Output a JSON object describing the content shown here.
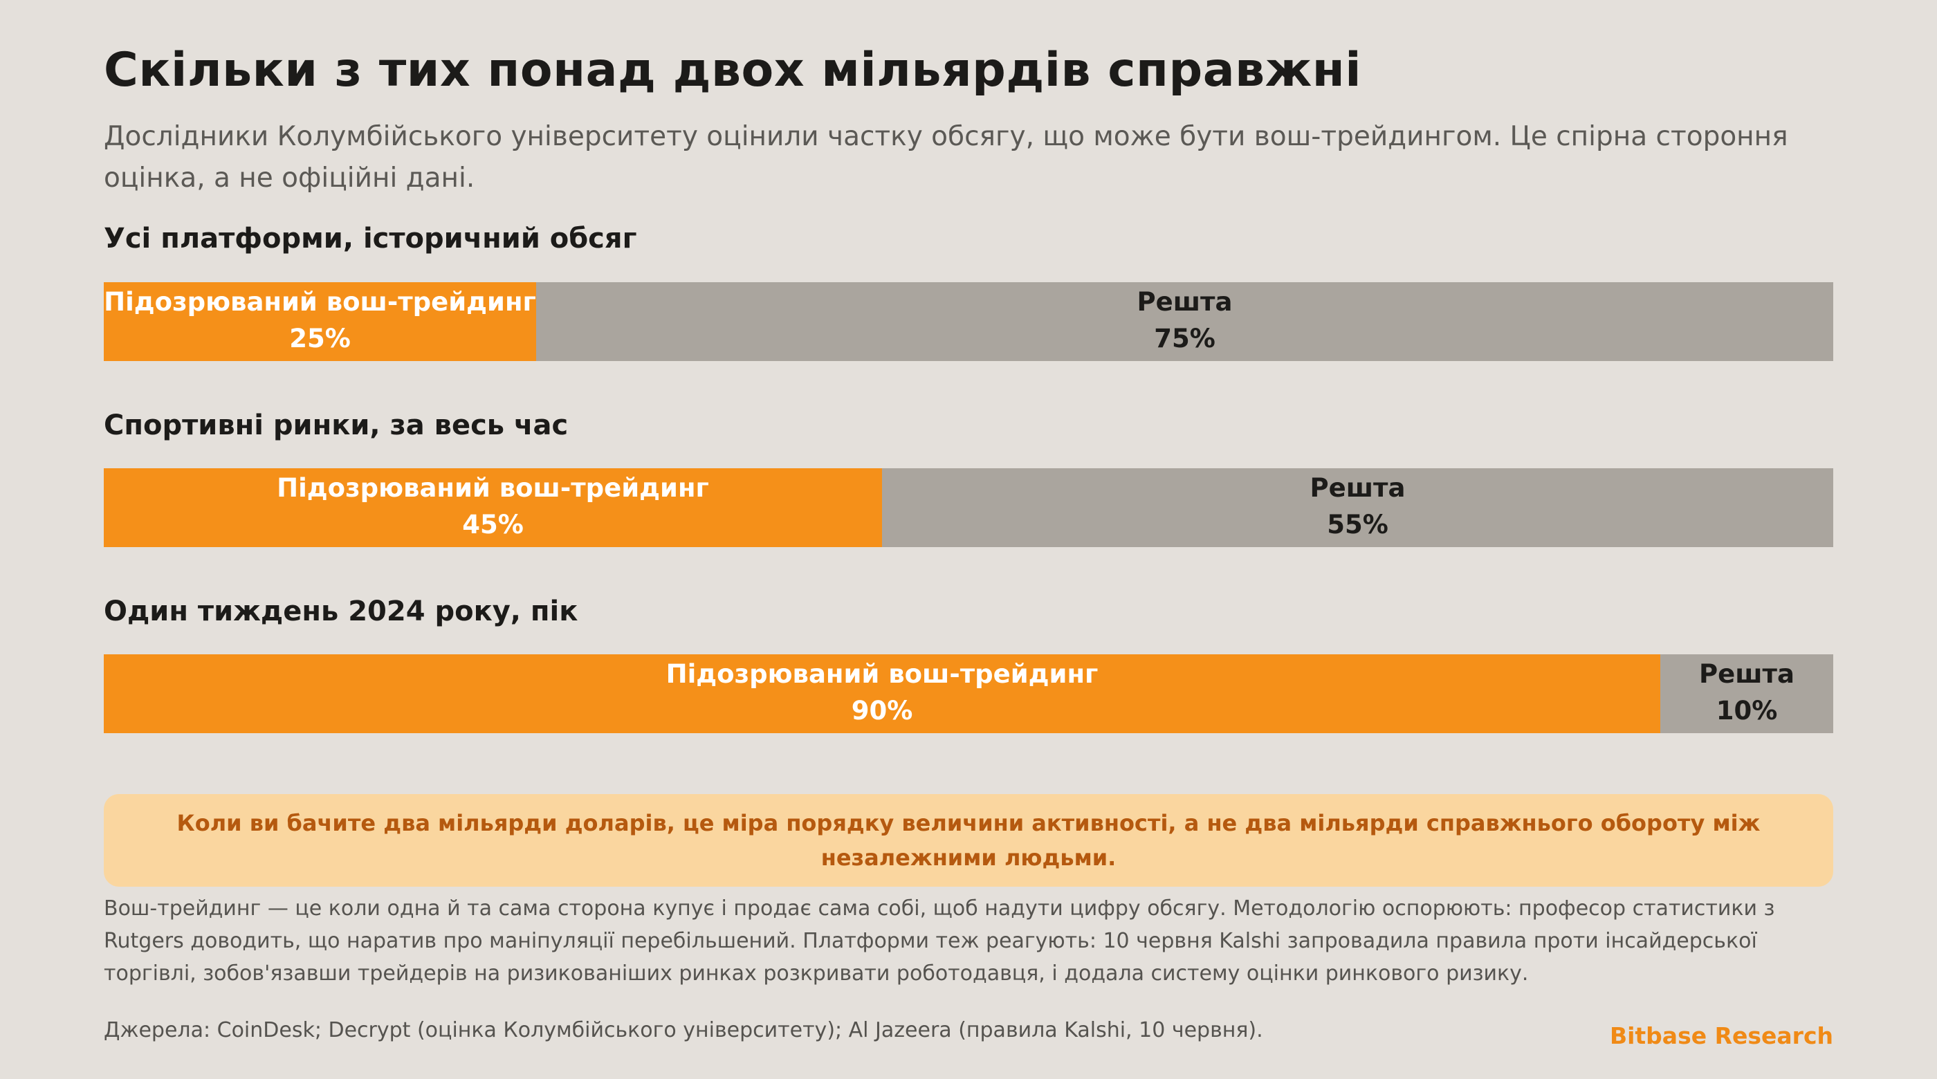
{
  "title": "Скільки з тих понад двох мільярдів справжні",
  "subtitle": "Дослідники Колумбійського університету оцінили частку обсягу, що може бути вош-трейдингом. Це спірна стороння оцінка, а не офіційні дані.",
  "colors": {
    "primary": "#f59019",
    "rest": "#aaa59e",
    "background": "#e4e0db",
    "callout_bg": "#fad69f",
    "callout_text": "#b5590f",
    "brand": "#f08a16"
  },
  "chart_data": [
    {
      "type": "bar",
      "orientation": "horizontal-stacked-100",
      "title": "Усі платформи, історичний обсяг",
      "series": [
        {
          "name": "Підозрюваний вош-трейдинг",
          "value": 25,
          "value_label": "25%"
        },
        {
          "name": "Решта",
          "value": 75,
          "value_label": "75%"
        }
      ]
    },
    {
      "type": "bar",
      "orientation": "horizontal-stacked-100",
      "title": "Спортивні ринки, за весь час",
      "series": [
        {
          "name": "Підозрюваний вош-трейдинг",
          "value": 45,
          "value_label": "45%"
        },
        {
          "name": "Решта",
          "value": 55,
          "value_label": "55%"
        }
      ]
    },
    {
      "type": "bar",
      "orientation": "horizontal-stacked-100",
      "title": "Один тиждень 2024 року, пік",
      "series": [
        {
          "name": "Підозрюваний вош-трейдинг",
          "value": 90,
          "value_label": "90%"
        },
        {
          "name": "Решта",
          "value": 10,
          "value_label": "10%"
        }
      ]
    }
  ],
  "callout": "Коли ви бачите два мільярди доларів, це міра порядку величини активності, а не два мільярди справжнього обороту між незалежними людьми.",
  "note": "Вош-трейдинг — це коли одна й та сама сторона купує і продає сама собі, щоб надути цифру обсягу. Методологію оспорюють: професор статистики з Rutgers доводить, що наратив про маніпуляції перебільшений. Платформи теж реагують: 10 червня Kalshi запровадила правила проти інсайдерської торгівлі, зобов'язавши трейдерів на ризикованіших ринках розкривати роботодавця, і додала систему оцінки ринкового ризику.",
  "sources": "Джерела: CoinDesk; Decrypt (оцінка Колумбійського університету); Al Jazeera (правила Kalshi, 10 червня).",
  "brand": "Bitbase Research"
}
